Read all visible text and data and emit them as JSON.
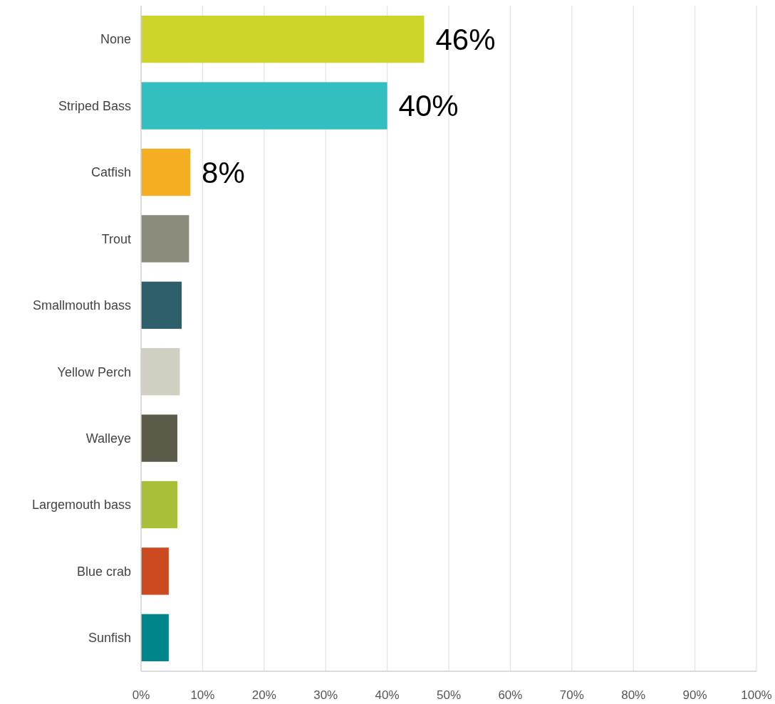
{
  "chart_data": {
    "type": "bar",
    "orientation": "horizontal",
    "categories": [
      "None",
      "Striped Bass",
      "Catfish",
      "Trout",
      "Smallmouth bass",
      "Yellow Perch",
      "Walleye",
      "Largemouth bass",
      "Blue crab",
      "Sunfish"
    ],
    "values": [
      46,
      40,
      8,
      7.8,
      6.6,
      6.3,
      5.9,
      5.9,
      4.5,
      4.5
    ],
    "value_labels": [
      "46%",
      "40%",
      "8%",
      null,
      null,
      null,
      null,
      null,
      null,
      null
    ],
    "colors": [
      "#cdd52a",
      "#33bec0",
      "#f5ae21",
      "#8c8c7c",
      "#2f5f6b",
      "#d0cfc2",
      "#5c5a48",
      "#a9bf3a",
      "#cc4a1f",
      "#00868a"
    ],
    "xlim": [
      0,
      100
    ],
    "xticks": [
      {
        "value": 0,
        "label": "0%"
      },
      {
        "value": 10,
        "label": "10%"
      },
      {
        "value": 20,
        "label": "20%"
      },
      {
        "value": 30,
        "label": "30%"
      },
      {
        "value": 40,
        "label": "40%"
      },
      {
        "value": 50,
        "label": "50%"
      },
      {
        "value": 60,
        "label": "60%"
      },
      {
        "value": 70,
        "label": "70%"
      },
      {
        "value": 80,
        "label": "80%"
      },
      {
        "value": 90,
        "label": "90%"
      },
      {
        "value": 100,
        "label": "100%"
      }
    ],
    "grid": "x"
  }
}
